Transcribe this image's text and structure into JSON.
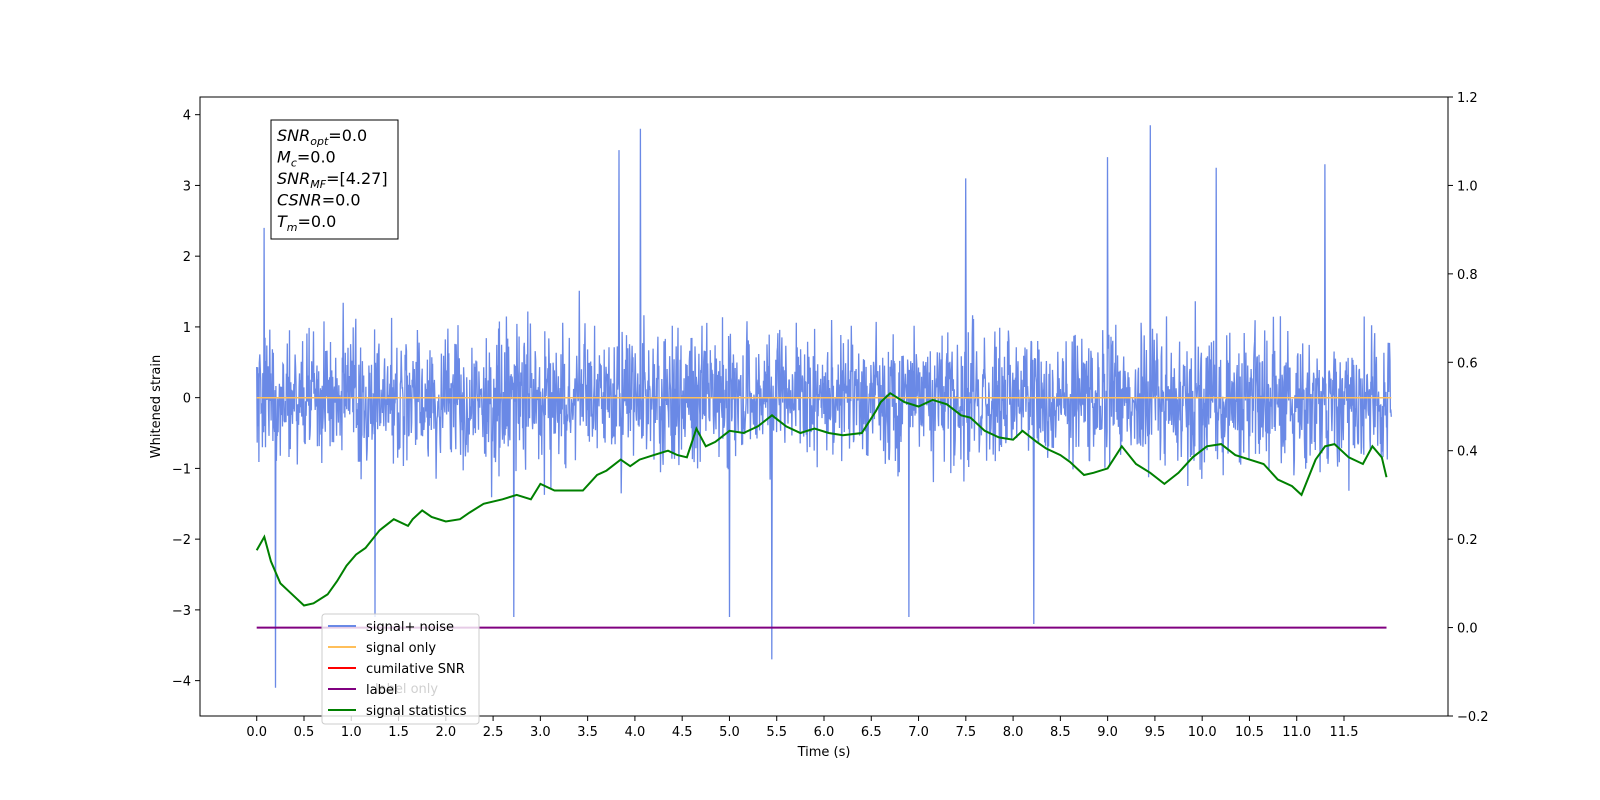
{
  "chart_data": {
    "type": "line",
    "xlabel": "Time (s)",
    "ylabel": "Whitened strain",
    "xlim": [
      -0.6,
      12.6
    ],
    "ylim": [
      -4.5,
      4.25
    ],
    "y2lim": [
      -0.2,
      1.2
    ],
    "x_ticks": [
      "0.0",
      "0.5",
      "1.0",
      "1.5",
      "2.0",
      "2.5",
      "3.0",
      "3.5",
      "4.0",
      "4.5",
      "5.0",
      "5.5",
      "6.0",
      "6.5",
      "7.0",
      "7.5",
      "8.0",
      "8.5",
      "9.0",
      "9.5",
      "10.0",
      "10.5",
      "11.0",
      "11.5"
    ],
    "y_ticks": [
      "4",
      "3",
      "2",
      "1",
      "0",
      "−1",
      "−2",
      "−3",
      "−4"
    ],
    "y2_ticks": [
      "1.2",
      "1.0",
      "0.8",
      "0.6",
      "0.4",
      "0.2",
      "0.0",
      "−0.2"
    ],
    "noise": {
      "name": "signal+ noise",
      "color": "#6a89e6",
      "t_start": 0.0,
      "t_end": 12.0,
      "spikes": [
        {
          "x": 0.2,
          "y": -4.1
        },
        {
          "x": 0.08,
          "y": 2.4
        },
        {
          "x": 1.25,
          "y": -3.1
        },
        {
          "x": 2.72,
          "y": -3.1
        },
        {
          "x": 3.83,
          "y": 3.5
        },
        {
          "x": 4.06,
          "y": 3.8
        },
        {
          "x": 5.0,
          "y": -3.1
        },
        {
          "x": 5.45,
          "y": -3.7
        },
        {
          "x": 6.9,
          "y": -3.1
        },
        {
          "x": 7.5,
          "y": 3.1
        },
        {
          "x": 8.22,
          "y": -3.2
        },
        {
          "x": 9.0,
          "y": 3.4
        },
        {
          "x": 9.45,
          "y": 3.85
        },
        {
          "x": 10.15,
          "y": 3.25
        },
        {
          "x": 11.3,
          "y": 3.3
        }
      ]
    },
    "series": [
      {
        "name": "signal only",
        "color": "#ffbf5a",
        "axis": "left",
        "x": [
          0.0,
          12.0
        ],
        "y": [
          0.0,
          0.0
        ]
      },
      {
        "name": "cumilative SNR",
        "color": "#ff0000",
        "axis": "right",
        "x": [],
        "y": []
      },
      {
        "name": "label",
        "color": "#800080",
        "axis": "right",
        "x": [
          0.0,
          11.95
        ],
        "y": [
          0.0,
          0.0
        ]
      },
      {
        "name": "signal statistics",
        "color": "#008000",
        "axis": "right",
        "x": [
          0.0,
          0.08,
          0.15,
          0.25,
          0.35,
          0.5,
          0.6,
          0.75,
          0.85,
          0.95,
          1.05,
          1.15,
          1.3,
          1.45,
          1.6,
          1.65,
          1.75,
          1.85,
          2.0,
          2.15,
          2.25,
          2.4,
          2.6,
          2.75,
          2.9,
          3.0,
          3.15,
          3.3,
          3.45,
          3.6,
          3.7,
          3.85,
          3.95,
          4.05,
          4.2,
          4.35,
          4.45,
          4.55,
          4.65,
          4.75,
          4.85,
          5.0,
          5.15,
          5.3,
          5.45,
          5.6,
          5.75,
          5.9,
          6.05,
          6.2,
          6.4,
          6.55,
          6.6,
          6.7,
          6.85,
          7.0,
          7.15,
          7.3,
          7.45,
          7.55,
          7.7,
          7.85,
          8.0,
          8.1,
          8.25,
          8.35,
          8.5,
          8.6,
          8.75,
          8.85,
          9.0,
          9.15,
          9.3,
          9.45,
          9.6,
          9.75,
          9.9,
          10.05,
          10.2,
          10.35,
          10.5,
          10.65,
          10.8,
          10.95,
          11.05,
          11.2,
          11.3,
          11.4,
          11.55,
          11.7,
          11.8,
          11.9,
          11.95
        ],
        "y": [
          0.175,
          0.205,
          0.15,
          0.1,
          0.08,
          0.05,
          0.055,
          0.075,
          0.105,
          0.14,
          0.165,
          0.18,
          0.22,
          0.245,
          0.23,
          0.245,
          0.265,
          0.25,
          0.24,
          0.245,
          0.26,
          0.28,
          0.29,
          0.3,
          0.29,
          0.325,
          0.31,
          0.31,
          0.31,
          0.345,
          0.355,
          0.38,
          0.365,
          0.38,
          0.39,
          0.4,
          0.39,
          0.385,
          0.45,
          0.41,
          0.42,
          0.445,
          0.44,
          0.455,
          0.48,
          0.455,
          0.44,
          0.45,
          0.44,
          0.435,
          0.44,
          0.49,
          0.51,
          0.53,
          0.51,
          0.5,
          0.515,
          0.505,
          0.48,
          0.475,
          0.445,
          0.43,
          0.425,
          0.445,
          0.42,
          0.405,
          0.39,
          0.375,
          0.345,
          0.35,
          0.36,
          0.41,
          0.37,
          0.35,
          0.325,
          0.35,
          0.385,
          0.41,
          0.415,
          0.39,
          0.38,
          0.37,
          0.335,
          0.32,
          0.3,
          0.38,
          0.41,
          0.415,
          0.385,
          0.37,
          0.41,
          0.385,
          0.34
        ]
      }
    ],
    "legend": {
      "position": "lower-left",
      "entries": [
        {
          "label": "signal+ noise",
          "color": "#6a89e6"
        },
        {
          "label": "signal only",
          "color": "#ffbf5a"
        },
        {
          "label": "cumilative SNR",
          "color": "#ff0000"
        },
        {
          "label": "label",
          "color": "#800080"
        },
        {
          "label": "signal statistics",
          "color": "#008000"
        }
      ],
      "ghost_text": "label only"
    },
    "info_box": [
      {
        "main": "SNR",
        "sub": "opt",
        "rest": "=0.0"
      },
      {
        "main": "M",
        "sub": "c",
        "rest": "=0.0"
      },
      {
        "main": "SNR",
        "sub": "MF",
        "rest": "=[4.27]"
      },
      {
        "main": "CSNR",
        "sub": "",
        "rest": "=0.0"
      },
      {
        "main": "T",
        "sub": "m",
        "rest": "=0.0"
      }
    ]
  }
}
